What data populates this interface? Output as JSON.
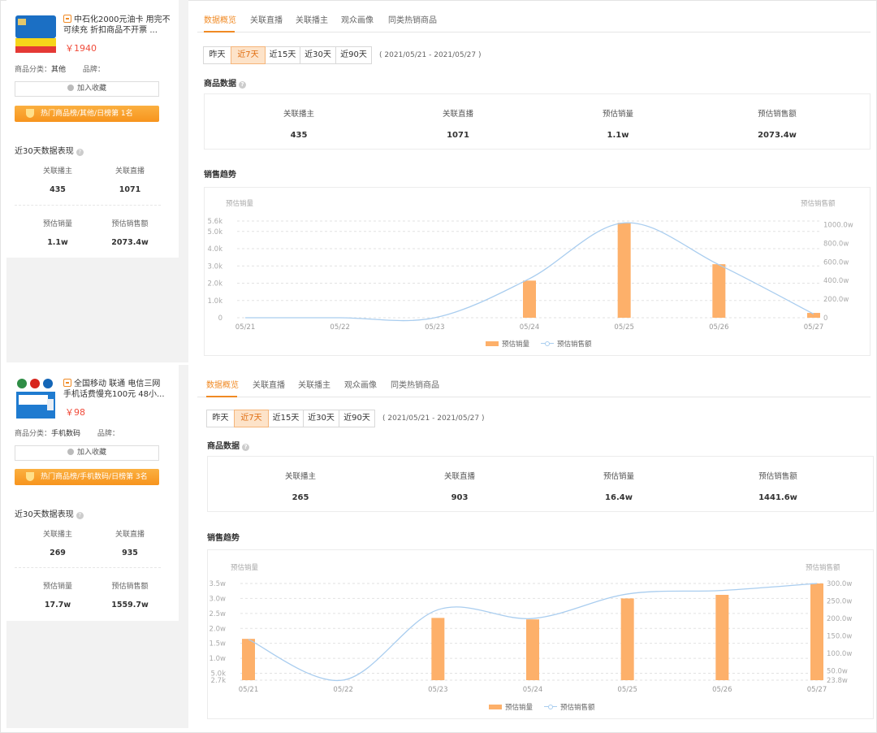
{
  "products": [
    {
      "title": "中石化2000元油卡 用完不可续充 折扣商品不开票 ...",
      "price": "￥1940",
      "category_label": "商品分类：",
      "category_value": "其他",
      "brand_label": "品牌：",
      "brand_value": "",
      "fav_label": "加入收藏",
      "rank_text": "热门商品榜/其他/日榜第 1名",
      "recent_title": "近30天数据表现",
      "recent_stats": [
        {
          "label": "关联播主",
          "value": "435"
        },
        {
          "label": "关联直播",
          "value": "1071"
        },
        {
          "label": "预估销量",
          "value": "1.1w"
        },
        {
          "label": "预估销售额",
          "value": "2073.4w"
        }
      ],
      "tabs": [
        "数据概览",
        "关联直播",
        "关联播主",
        "观众画像",
        "同类热销商品"
      ],
      "active_tab": 0,
      "ranges": [
        "昨天",
        "近7天",
        "近15天",
        "近30天",
        "近90天"
      ],
      "active_range": 1,
      "date_range": "( 2021/05/21 - 2021/05/27 )",
      "goods_data_title": "商品数据",
      "goods_stats": [
        {
          "label": "关联播主",
          "value": "435"
        },
        {
          "label": "关联直播",
          "value": "1071"
        },
        {
          "label": "预估销量",
          "value": "1.1w"
        },
        {
          "label": "预估销售额",
          "value": "2073.4w"
        }
      ],
      "trend_title": "销售趋势",
      "chart_data": {
        "type": "bar",
        "title": "",
        "categories": [
          "05/21",
          "05/22",
          "05/23",
          "05/24",
          "05/25",
          "05/26",
          "05/27"
        ],
        "left_axis_label": "预估销量",
        "right_axis_label": "预估销售额",
        "left_ticks": [
          "0",
          "1.0k",
          "2.0k",
          "3.0k",
          "4.0k",
          "5.0k",
          "5.6k"
        ],
        "left_tick_values": [
          0,
          1000,
          2000,
          3000,
          4000,
          5000,
          5600
        ],
        "right_ticks": [
          "0",
          "200.0w",
          "400.0w",
          "600.0w",
          "800.0w",
          "1000.0w"
        ],
        "right_tick_values": [
          0,
          200,
          400,
          600,
          800,
          1000
        ],
        "ylim_left": [
          0,
          5600
        ],
        "ylim_right": [
          0,
          1040
        ],
        "series": [
          {
            "name": "预估销量",
            "kind": "bar",
            "axis": "left",
            "values": [
              0,
              0,
              0,
              2150,
              5500,
              3100,
              280
            ],
            "color": "#fdb06a"
          },
          {
            "name": "预估销售额",
            "kind": "line",
            "axis": "right",
            "values": [
              0,
              0,
              0,
              420,
              1020,
              570,
              40
            ],
            "color": "#a9cdef"
          }
        ],
        "legend": "bottom",
        "grid": true
      }
    },
    {
      "title": "全国移动 联通 电信三网 手机话费慢充100元 48小...",
      "price": "￥98",
      "category_label": "商品分类：",
      "category_value": "手机数码",
      "brand_label": "品牌：",
      "brand_value": "",
      "fav_label": "加入收藏",
      "rank_text": "热门商品榜/手机数码/日榜第 3名",
      "recent_title": "近30天数据表现",
      "recent_stats": [
        {
          "label": "关联播主",
          "value": "269"
        },
        {
          "label": "关联直播",
          "value": "935"
        },
        {
          "label": "预估销量",
          "value": "17.7w"
        },
        {
          "label": "预估销售额",
          "value": "1559.7w"
        }
      ],
      "tabs": [
        "数据概览",
        "关联直播",
        "关联播主",
        "观众画像",
        "同类热销商品"
      ],
      "active_tab": 0,
      "ranges": [
        "昨天",
        "近7天",
        "近15天",
        "近30天",
        "近90天"
      ],
      "active_range": 1,
      "date_range": "( 2021/05/21 - 2021/05/27 )",
      "goods_data_title": "商品数据",
      "goods_stats": [
        {
          "label": "关联播主",
          "value": "265"
        },
        {
          "label": "关联直播",
          "value": "903"
        },
        {
          "label": "预估销量",
          "value": "16.4w"
        },
        {
          "label": "预估销售额",
          "value": "1441.6w"
        }
      ],
      "trend_title": "销售趋势",
      "chart_data": {
        "type": "bar",
        "title": "",
        "categories": [
          "05/21",
          "05/22",
          "05/23",
          "05/24",
          "05/25",
          "05/26",
          "05/27"
        ],
        "left_axis_label": "预估销量",
        "right_axis_label": "预估销售额",
        "left_ticks": [
          "2.7k",
          "5.0k",
          "1.0w",
          "1.5w",
          "2.0w",
          "2.5w",
          "3.0w",
          "3.5w"
        ],
        "left_tick_values": [
          2700,
          5000,
          10000,
          15000,
          20000,
          25000,
          30000,
          35000
        ],
        "right_ticks": [
          "23.8w",
          "50.0w",
          "100.0w",
          "150.0w",
          "200.0w",
          "250.0w",
          "300.0w"
        ],
        "right_tick_values": [
          23.8,
          50,
          100,
          150,
          200,
          250,
          300
        ],
        "ylim_left": [
          2700,
          35000
        ],
        "ylim_right": [
          23.8,
          300
        ],
        "series": [
          {
            "name": "预估销量",
            "kind": "bar",
            "axis": "left",
            "values": [
              16500,
              2700,
              23500,
              23000,
              30000,
              31200,
              35000
            ],
            "color": "#fdb06a"
          },
          {
            "name": "预估销售额",
            "kind": "line",
            "axis": "right",
            "values": [
              140,
              24,
              225,
              200,
              270,
              280,
              300
            ],
            "color": "#a9cdef"
          }
        ],
        "legend": "bottom",
        "grid": true
      }
    }
  ]
}
